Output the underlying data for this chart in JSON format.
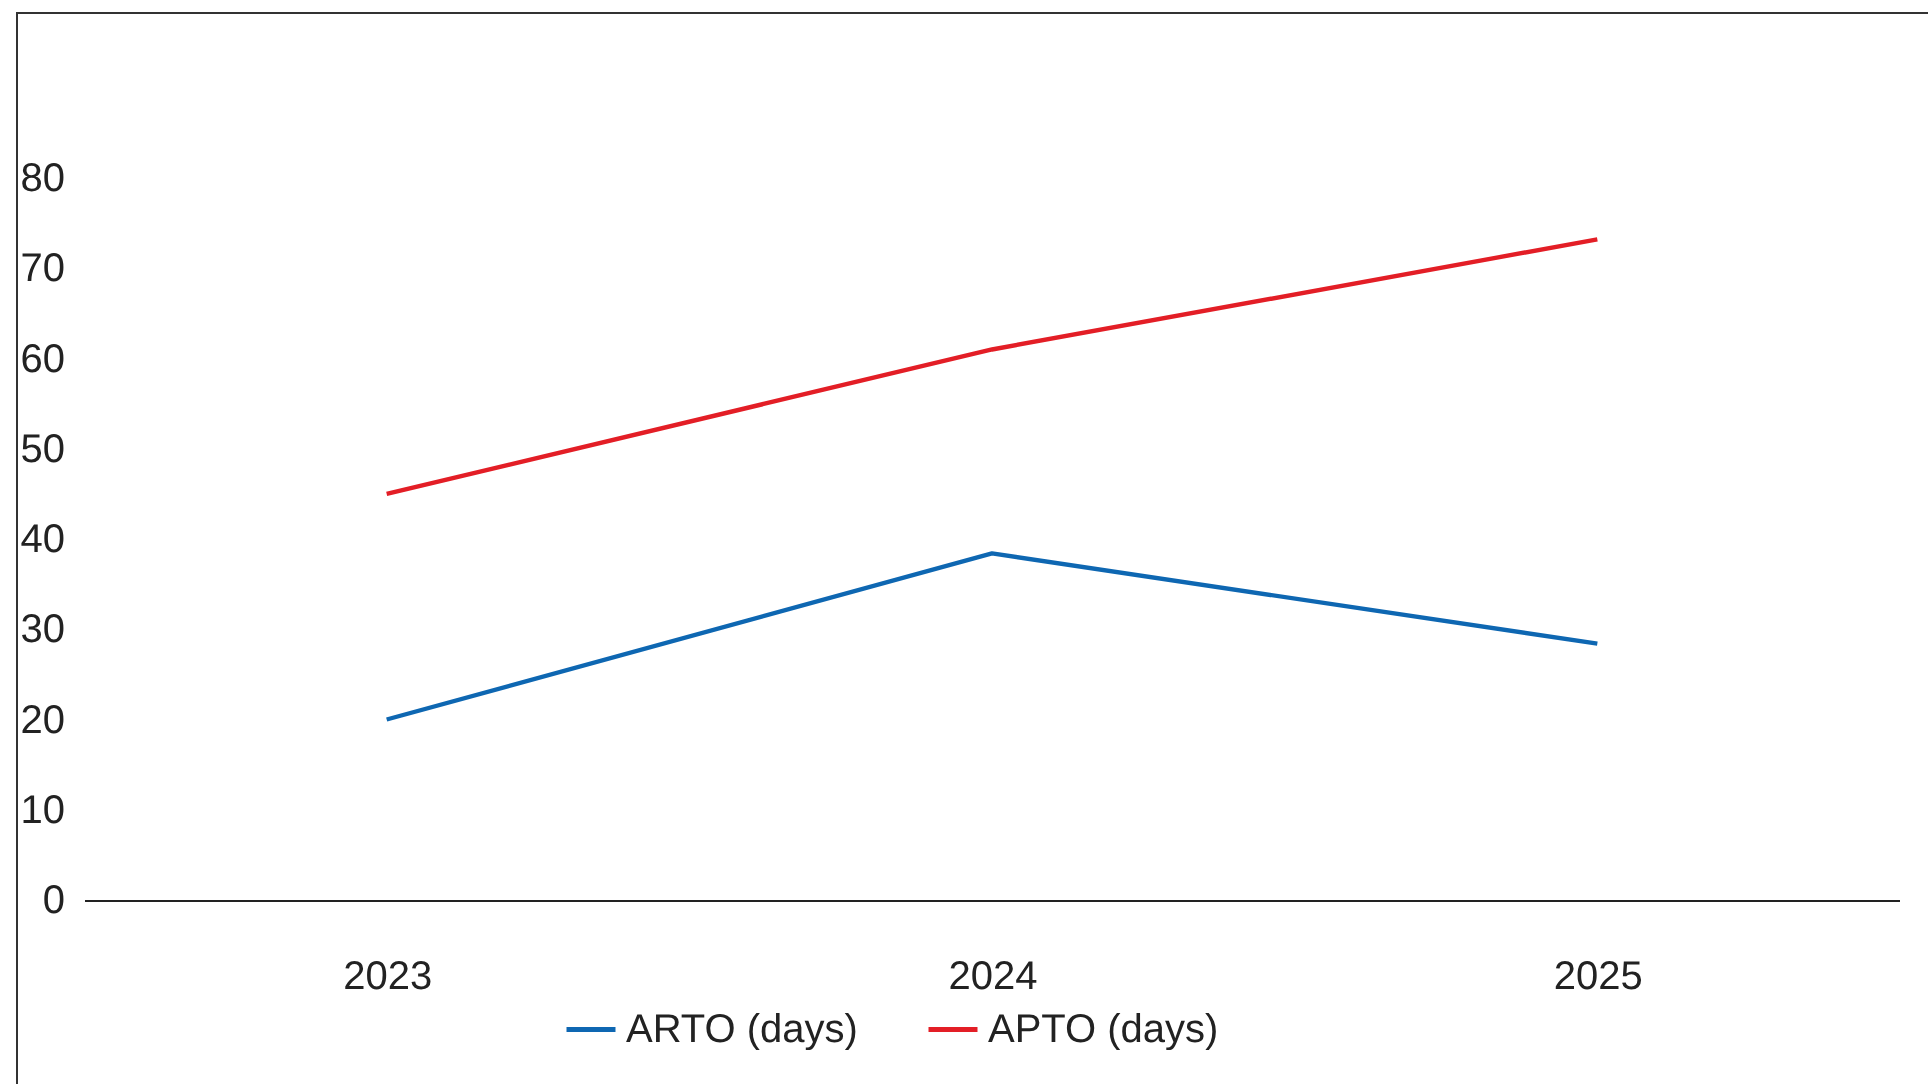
{
  "chart_data": {
    "type": "line",
    "categories": [
      "2023",
      "2024",
      "2025"
    ],
    "series": [
      {
        "name": "ARTO (days)",
        "color": "#0e67b2",
        "values": [
          20,
          38.4,
          28.4
        ]
      },
      {
        "name": "APTO (days)",
        "color": "#e31e26",
        "values": [
          45,
          61,
          73.2
        ]
      }
    ],
    "ylim": [
      0,
      80
    ],
    "yticks": [
      0,
      10,
      20,
      30,
      40,
      50,
      60,
      70,
      80
    ],
    "grid": false,
    "legend": "bottom",
    "marker": "none",
    "line_style": "solid"
  }
}
